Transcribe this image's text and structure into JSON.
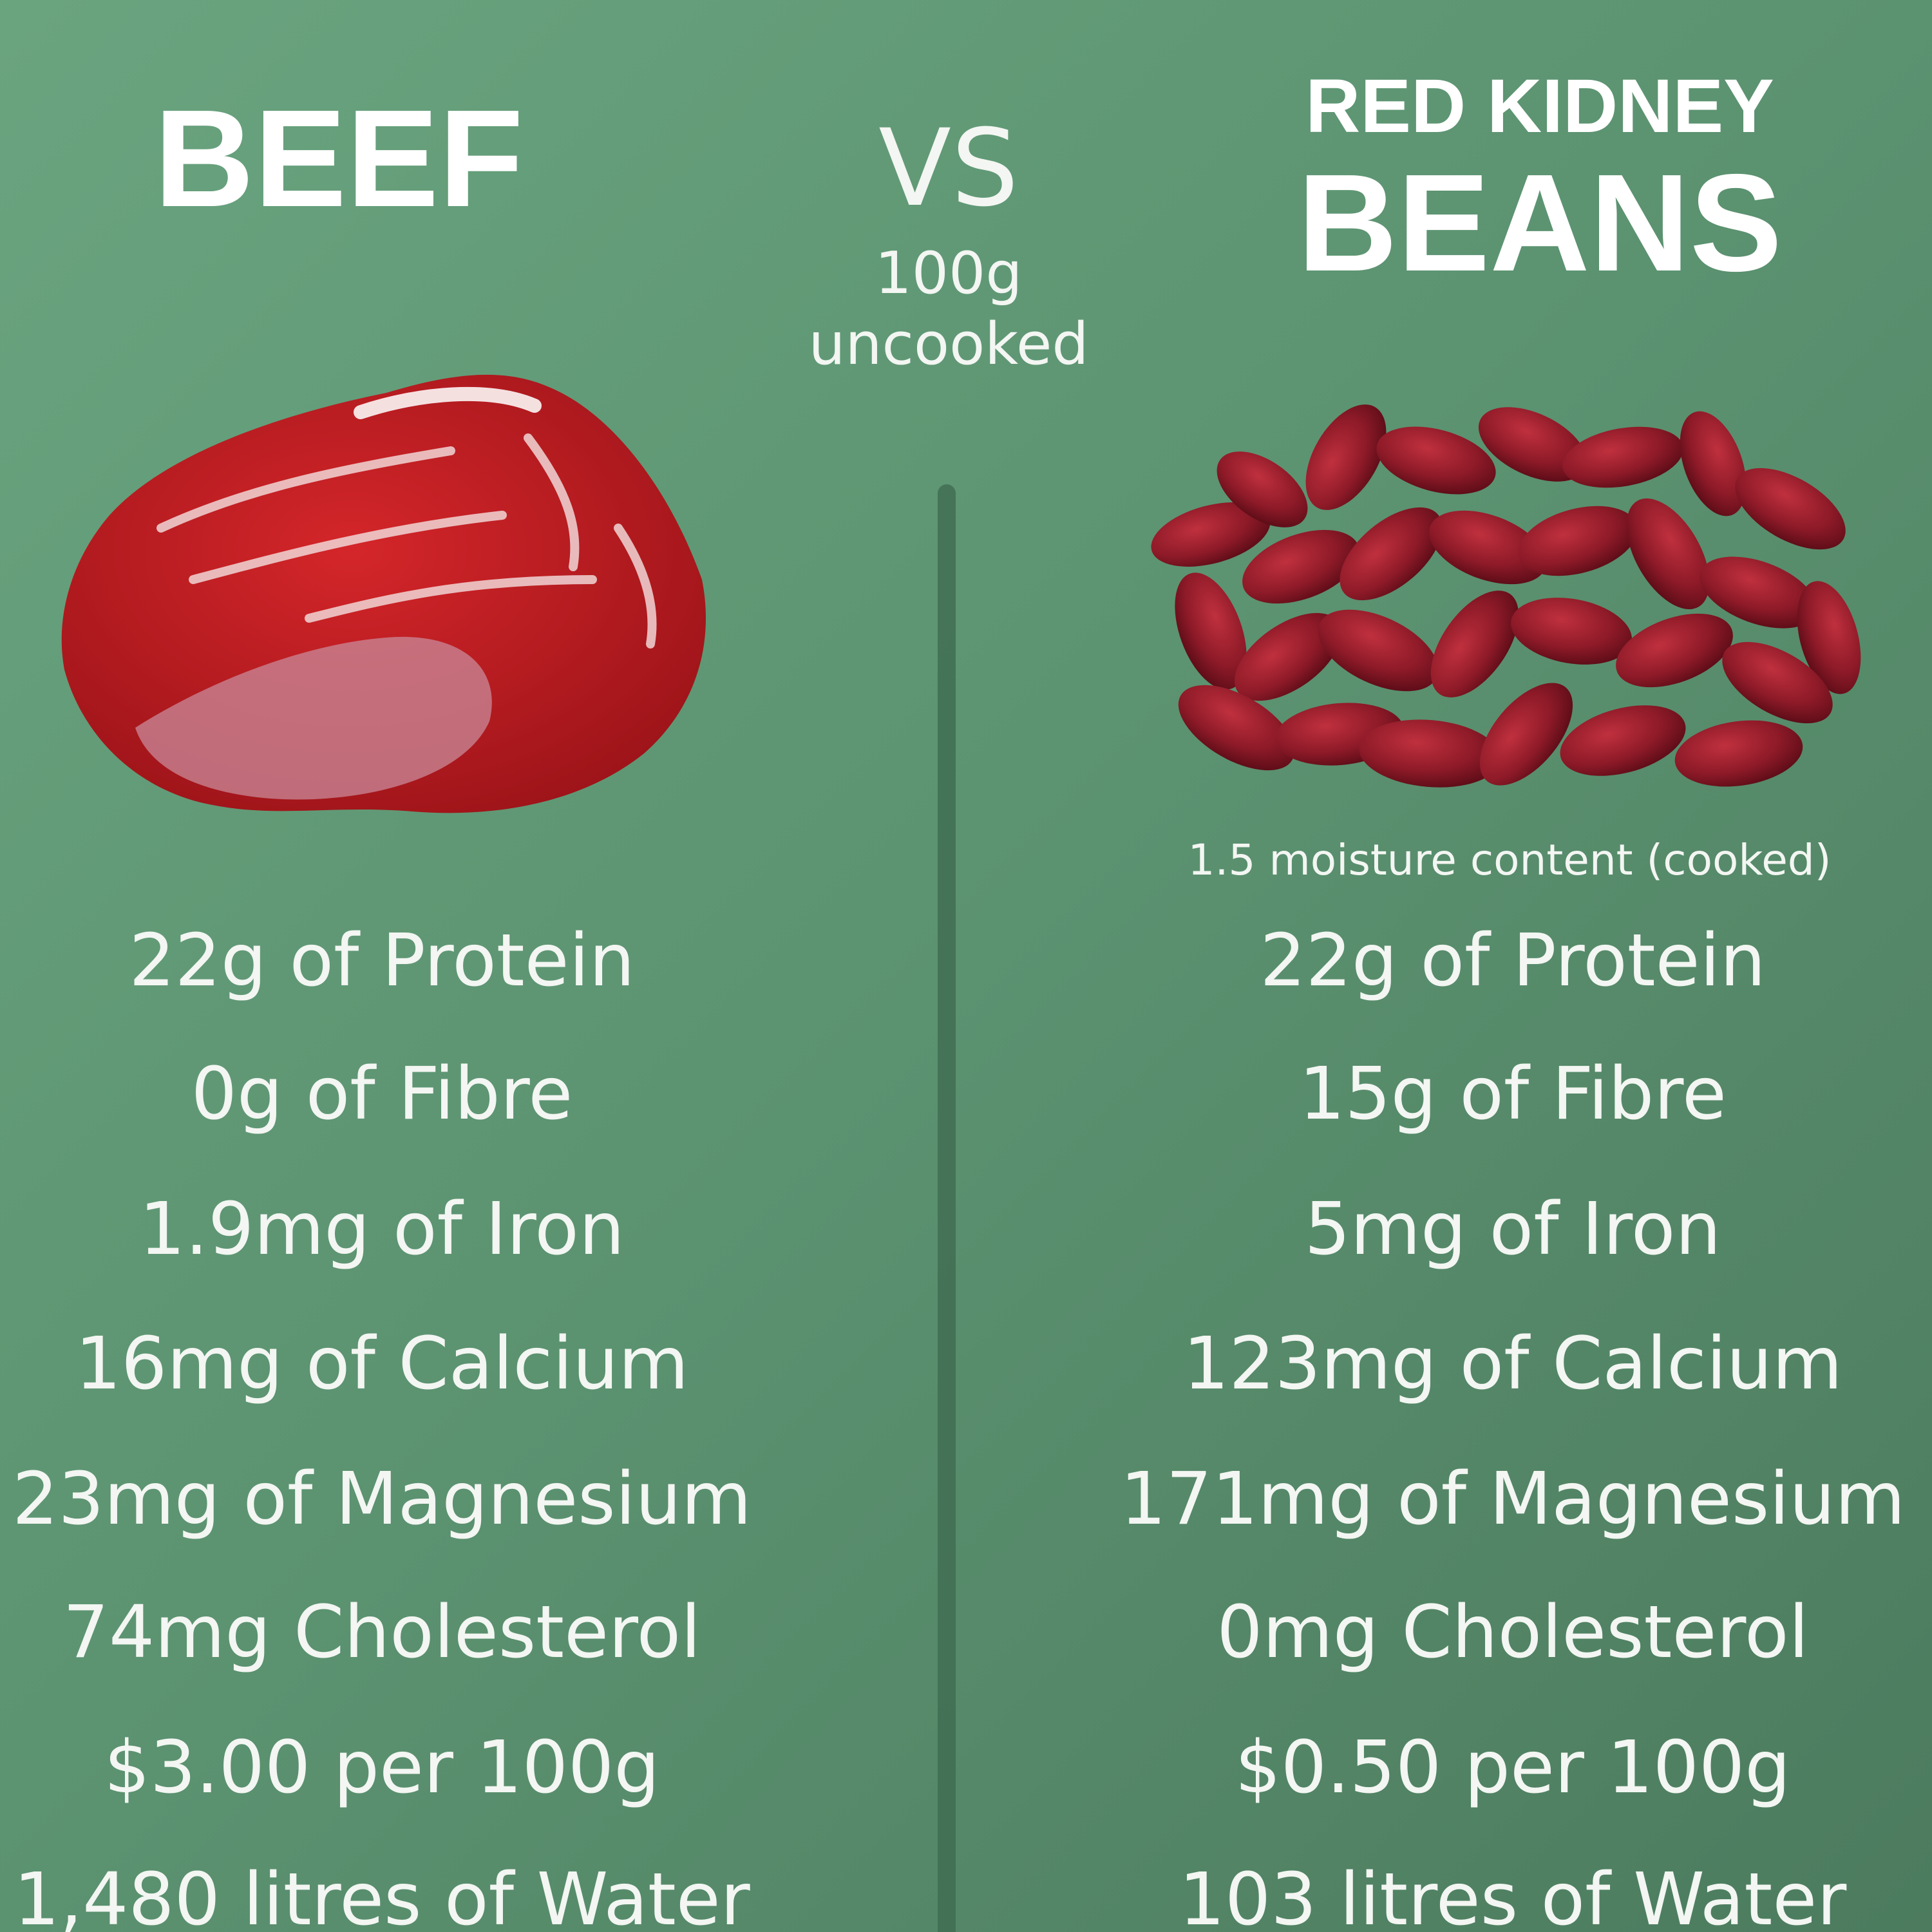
{
  "header": {
    "left_title": "BEEF",
    "vs": "VS",
    "amount": "100g",
    "state": "uncooked",
    "right_title_line1": "RED KIDNEY",
    "right_title_line2": "BEANS"
  },
  "right_note": "1.5 moisture content (cooked)",
  "left_items": [
    "22g of Protein",
    "0g of Fibre",
    "1.9mg of Iron",
    "16mg of Calcium",
    "23mg of Magnesium",
    "74mg Cholesterol",
    "$3.00 per 100g",
    "1,480 litres of Water"
  ],
  "right_items": [
    "22g of Protein",
    "15g of Fibre",
    "5mg of Iron",
    "123mg of Calcium",
    "171mg of Magnesium",
    "0mg Cholesterol",
    "$0.50 per 100g",
    "103 litres of Water"
  ]
}
